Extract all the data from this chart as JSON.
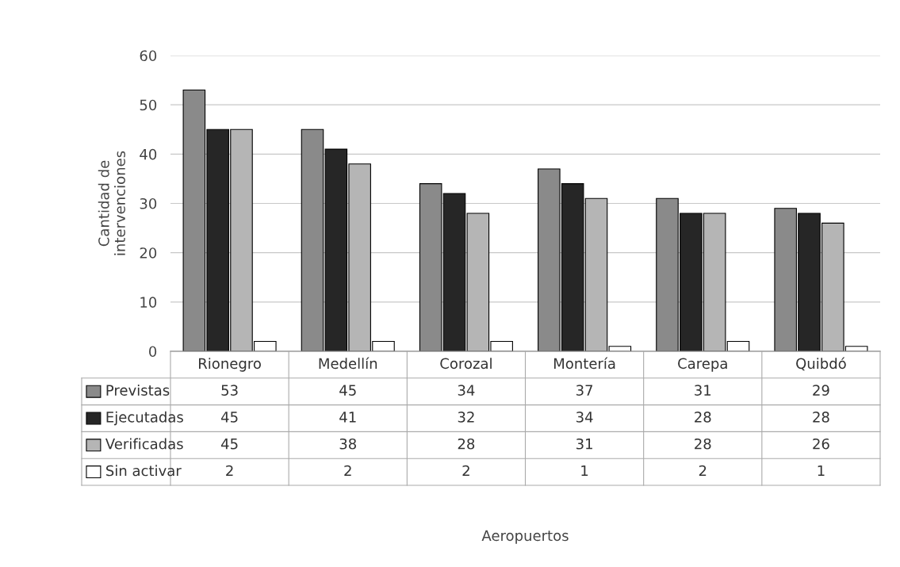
{
  "chart_data": {
    "type": "bar",
    "annotations": [
      "Aeropuertos"
    ],
    "ylabel": "Cantidad de\nintervenciones",
    "categories": [
      "Rionegro",
      "Medellín",
      "Corozal",
      "Montería",
      "Carepa",
      "Quibdó"
    ],
    "series": [
      {
        "name": "Previstas",
        "color": "#8a8a8a",
        "values": [
          53,
          45,
          34,
          37,
          31,
          29
        ]
      },
      {
        "name": "Ejecutadas",
        "color": "#262626",
        "values": [
          45,
          41,
          32,
          34,
          28,
          28
        ]
      },
      {
        "name": "Verificadas",
        "color": "#b5b5b5",
        "values": [
          45,
          38,
          28,
          31,
          28,
          26
        ]
      },
      {
        "name": "Sin activar",
        "color": "#ffffff",
        "values": [
          2,
          2,
          2,
          1,
          2,
          1
        ]
      }
    ],
    "ylim": [
      0,
      60
    ],
    "yticks": [
      0,
      10,
      20,
      30,
      40,
      50,
      60
    ],
    "grid": "y",
    "data_labels": true,
    "legend": "bottom"
  }
}
